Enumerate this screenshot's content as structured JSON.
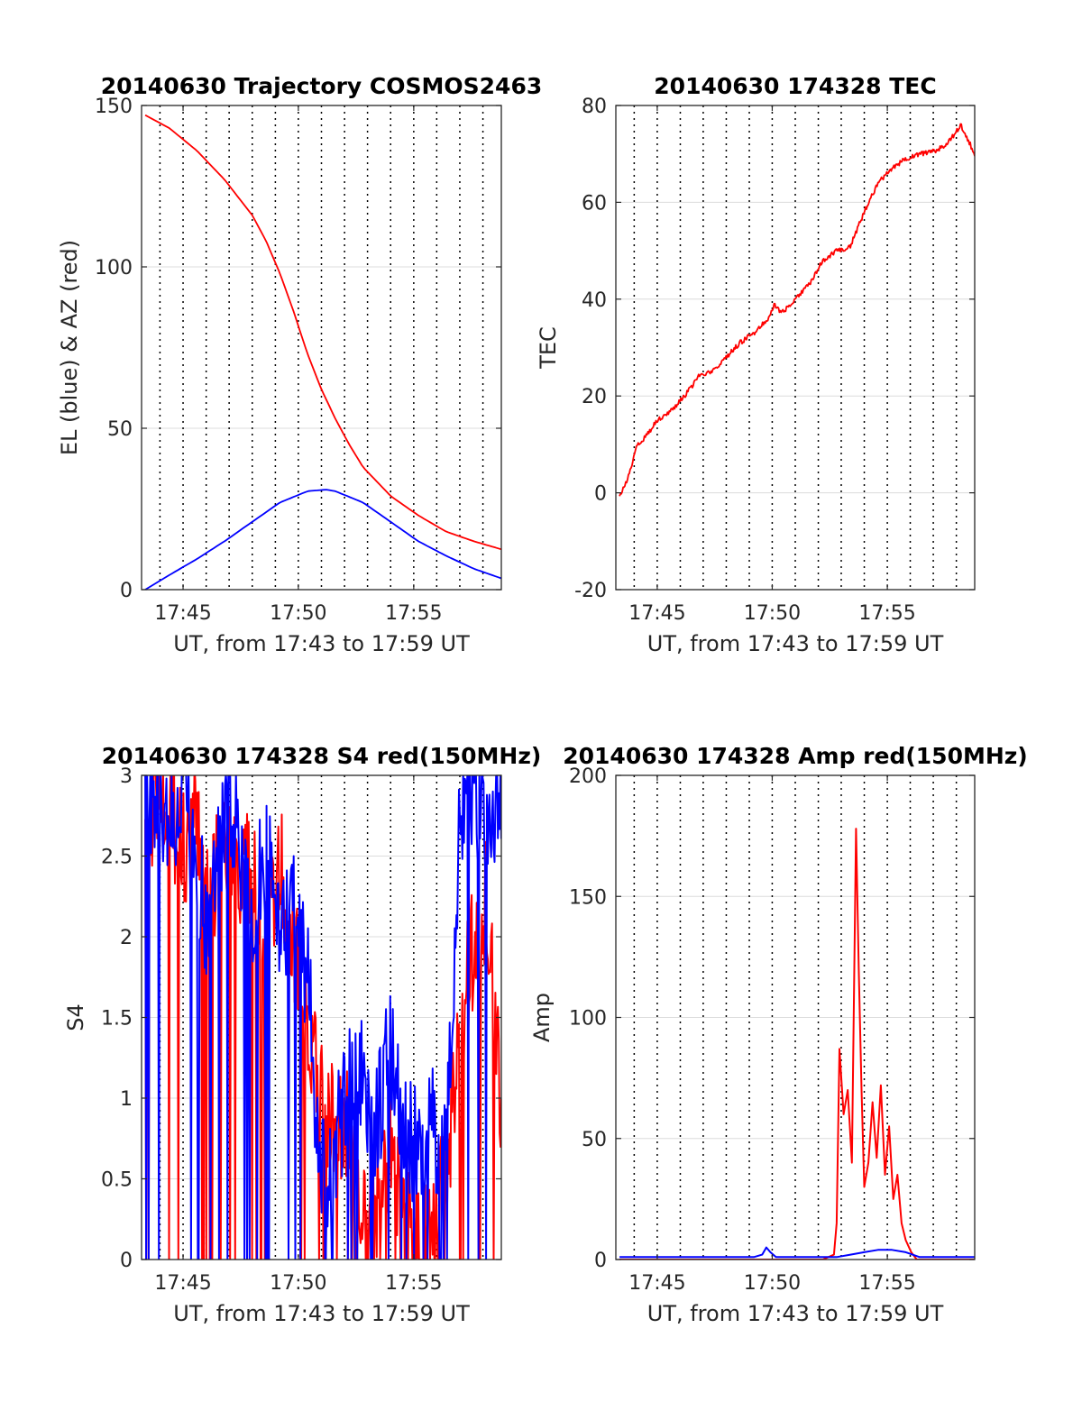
{
  "chart_data": [
    {
      "type": "line",
      "title": "20140630 Trajectory COSMOS2463",
      "xlabel": "UT, from 17:43 to 17:59 UT",
      "ylabel": "EL (blue) & AZ (red)",
      "xlim": [
        17.72,
        17.98
      ],
      "ylim": [
        0,
        150
      ],
      "xticks": [
        17.75,
        17.8333,
        17.9167
      ],
      "xticklabels": [
        "17:45",
        "17:50",
        "17:55"
      ],
      "yticks": [
        0,
        50,
        100,
        150
      ],
      "yticklabels": [
        "0",
        "50",
        "100",
        "150"
      ],
      "grid": true,
      "vlines": [
        17.7333,
        17.75,
        17.7667,
        17.7833,
        17.8,
        17.8167,
        17.8333,
        17.85,
        17.8667,
        17.8833,
        17.9,
        17.9167,
        17.9333,
        17.95,
        17.9667
      ],
      "series": [
        {
          "color": "#ff0000",
          "x": [
            17.7227,
            17.74,
            17.76,
            17.78,
            17.8,
            17.81,
            17.82,
            17.83,
            17.84,
            17.85,
            17.86,
            17.87,
            17.88,
            17.9,
            17.92,
            17.94,
            17.96,
            17.98
          ],
          "y": [
            147,
            143,
            136,
            127,
            116,
            108,
            98,
            86,
            73,
            62,
            53,
            45,
            38,
            29,
            23,
            18,
            15,
            12.5
          ]
        },
        {
          "color": "#0000ff",
          "x": [
            17.7227,
            17.74,
            17.76,
            17.78,
            17.8,
            17.82,
            17.84,
            17.8533,
            17.86,
            17.88,
            17.9,
            17.92,
            17.94,
            17.96,
            17.98
          ],
          "y": [
            0,
            4.5,
            9.5,
            15,
            21,
            27,
            30.5,
            31,
            30.5,
            27,
            21,
            15,
            10.5,
            6.5,
            3.5
          ]
        }
      ]
    },
    {
      "type": "line",
      "title": "20140630 174328 TEC",
      "xlabel": "UT, from 17:43 to 17:59 UT",
      "ylabel": "TEC",
      "xlim": [
        17.72,
        17.98
      ],
      "ylim": [
        -20,
        80
      ],
      "xticks": [
        17.75,
        17.8333,
        17.9167
      ],
      "xticklabels": [
        "17:45",
        "17:50",
        "17:55"
      ],
      "yticks": [
        -20,
        0,
        20,
        40,
        60,
        80
      ],
      "yticklabels": [
        "-20",
        "0",
        "20",
        "40",
        "60",
        "80"
      ],
      "grid": true,
      "vlines": [
        17.7333,
        17.75,
        17.7667,
        17.7833,
        17.8,
        17.8167,
        17.8333,
        17.85,
        17.8667,
        17.8833,
        17.9,
        17.9167,
        17.9333,
        17.95,
        17.9667
      ],
      "series": [
        {
          "color": "#ff0000",
          "x": [
            17.7227,
            17.73,
            17.735,
            17.74,
            17.75,
            17.76,
            17.77,
            17.78,
            17.79,
            17.8,
            17.81,
            17.82,
            17.83,
            17.835,
            17.84,
            17.85,
            17.86,
            17.87,
            17.88,
            17.885,
            17.89,
            17.9,
            17.91,
            17.92,
            17.93,
            17.94,
            17.95,
            17.96,
            17.965,
            17.97,
            17.975,
            17.98
          ],
          "y": [
            -1,
            4,
            10,
            11,
            15,
            17,
            20,
            24,
            25,
            28,
            31,
            33,
            36,
            39,
            37,
            40,
            43,
            48,
            50,
            50,
            51,
            58,
            64,
            67,
            69,
            70,
            70.5,
            72,
            74,
            76,
            73,
            70
          ]
        }
      ]
    },
    {
      "type": "line",
      "title": "20140630 174328 S4 red(150MHz)",
      "xlabel": "UT, from 17:43 to 17:59 UT",
      "ylabel": "S4",
      "xlim": [
        17.72,
        17.98
      ],
      "ylim": [
        0,
        3
      ],
      "xticks": [
        17.75,
        17.8333,
        17.9167
      ],
      "xticklabels": [
        "17:45",
        "17:50",
        "17:55"
      ],
      "yticks": [
        0,
        0.5,
        1,
        1.5,
        2,
        2.5,
        3
      ],
      "yticklabels": [
        "0",
        "0.5",
        "1",
        "1.5",
        "2",
        "2.5",
        "3"
      ],
      "grid": true,
      "vlines": [
        17.7333,
        17.75,
        17.7667,
        17.7833,
        17.8,
        17.8167,
        17.8333,
        17.85,
        17.8667,
        17.8833,
        17.9,
        17.9167,
        17.9333,
        17.95,
        17.9667
      ],
      "series": [
        {
          "color": "#ff0000",
          "x": [
            17.7227,
            17.73,
            17.74,
            17.75,
            17.76,
            17.77,
            17.78,
            17.79,
            17.8,
            17.81,
            17.82,
            17.83,
            17.84,
            17.85,
            17.86,
            17.87,
            17.875,
            17.88,
            17.89,
            17.9,
            17.91,
            17.92,
            17.93,
            17.94,
            17.95,
            17.96,
            17.97,
            17.98
          ],
          "y": [
            2.45,
            3.0,
            2.9,
            2.6,
            2.8,
            2.4,
            2.5,
            2.4,
            2.5,
            2.2,
            2.5,
            2.0,
            1.5,
            1.0,
            0.9,
            0.95,
            0.3,
            0.25,
            0.45,
            0.7,
            0.35,
            0.2,
            0.1,
            0.6,
            1.5,
            2.0,
            2.3,
            1.0
          ]
        },
        {
          "color": "#0000ff",
          "x": [
            17.7227,
            17.73,
            17.74,
            17.75,
            17.76,
            17.77,
            17.78,
            17.79,
            17.8,
            17.81,
            17.82,
            17.83,
            17.84,
            17.85,
            17.86,
            17.87,
            17.88,
            17.89,
            17.9,
            17.91,
            17.92,
            17.93,
            17.94,
            17.95,
            17.96,
            17.97,
            17.98
          ],
          "y": [
            2.9,
            3.0,
            2.6,
            3.0,
            2.4,
            2.1,
            2.9,
            2.7,
            2.2,
            2.6,
            2.0,
            2.3,
            1.8,
            0.5,
            0.8,
            1.1,
            1.2,
            0.9,
            1.4,
            0.85,
            0.7,
            0.9,
            0.6,
            2.9,
            3.0,
            2.7,
            3.0
          ]
        }
      ]
    },
    {
      "type": "line",
      "title": "20140630 174328 Amp red(150MHz)",
      "xlabel": "UT, from 17:43 to 17:59 UT",
      "ylabel": "Amp",
      "xlim": [
        17.72,
        17.98
      ],
      "ylim": [
        0,
        200
      ],
      "xticks": [
        17.75,
        17.8333,
        17.9167
      ],
      "xticklabels": [
        "17:45",
        "17:50",
        "17:55"
      ],
      "yticks": [
        0,
        50,
        100,
        150,
        200
      ],
      "yticklabels": [
        "0",
        "50",
        "100",
        "150",
        "200"
      ],
      "grid": true,
      "vlines": [
        17.7333,
        17.75,
        17.7667,
        17.7833,
        17.8,
        17.8167,
        17.8333,
        17.85,
        17.8667,
        17.8833,
        17.9,
        17.9167,
        17.9333,
        17.95,
        17.9667
      ],
      "series": [
        {
          "color": "#ff0000",
          "x": [
            17.7227,
            17.87,
            17.878,
            17.88,
            17.882,
            17.885,
            17.888,
            17.891,
            17.894,
            17.896,
            17.898,
            17.9,
            17.903,
            17.906,
            17.909,
            17.912,
            17.915,
            17.918,
            17.921,
            17.924,
            17.927,
            17.93,
            17.934,
            17.938,
            17.98
          ],
          "y": [
            0,
            0,
            2,
            15,
            87,
            60,
            70,
            40,
            178,
            120,
            70,
            30,
            40,
            65,
            42,
            72,
            35,
            55,
            25,
            35,
            15,
            8,
            3,
            0,
            0
          ]
        },
        {
          "color": "#0000ff",
          "x": [
            17.7227,
            17.8,
            17.82,
            17.826,
            17.829,
            17.832,
            17.836,
            17.86,
            17.88,
            17.89,
            17.9,
            17.91,
            17.92,
            17.93,
            17.935,
            17.94,
            17.98
          ],
          "y": [
            1,
            1,
            1,
            2,
            5,
            3,
            1,
            1,
            1,
            2,
            3,
            4,
            4,
            3,
            2,
            1,
            1
          ]
        }
      ]
    }
  ]
}
